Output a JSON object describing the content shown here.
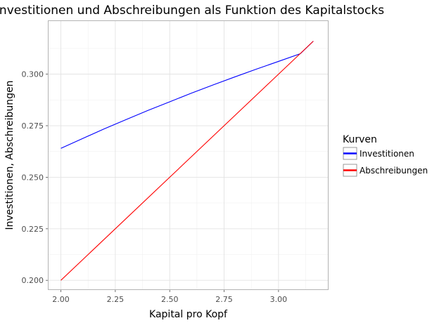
{
  "chart_data": {
    "type": "line",
    "title": "Investitionen und Abschreibungen als Funktion des Kapitalstocks",
    "xlabel": "Kapital pro Kopf",
    "ylabel": "Investitionen, Abschreibungen",
    "xlim": [
      1.94,
      3.23
    ],
    "ylim": [
      0.1953,
      0.3261
    ],
    "x_ticks": [
      2.0,
      2.25,
      2.5,
      2.75,
      3.0
    ],
    "x_tick_labels": [
      "2.00",
      "2.25",
      "2.50",
      "2.75",
      "3.00"
    ],
    "y_ticks": [
      0.2,
      0.225,
      0.25,
      0.275,
      0.3
    ],
    "y_tick_labels": [
      "0.200",
      "0.225",
      "0.250",
      "0.275",
      "0.300"
    ],
    "grid": true,
    "legend": {
      "title": "Kurven",
      "position": "right"
    },
    "series": [
      {
        "name": "Investitionen",
        "color": "#0000ff",
        "x": [
          2.0,
          2.1,
          2.2,
          2.3,
          2.4,
          2.5,
          2.6,
          2.7,
          2.8,
          2.9,
          3.0,
          3.1,
          3.16
        ],
        "y": [
          0.264,
          0.2688,
          0.2735,
          0.278,
          0.2824,
          0.2866,
          0.2908,
          0.2948,
          0.2987,
          0.3025,
          0.3062,
          0.3099,
          0.316
        ]
      },
      {
        "name": "Abschreibungen",
        "color": "#ff0000",
        "x": [
          2.0,
          3.16
        ],
        "y": [
          0.2,
          0.316
        ]
      }
    ]
  }
}
